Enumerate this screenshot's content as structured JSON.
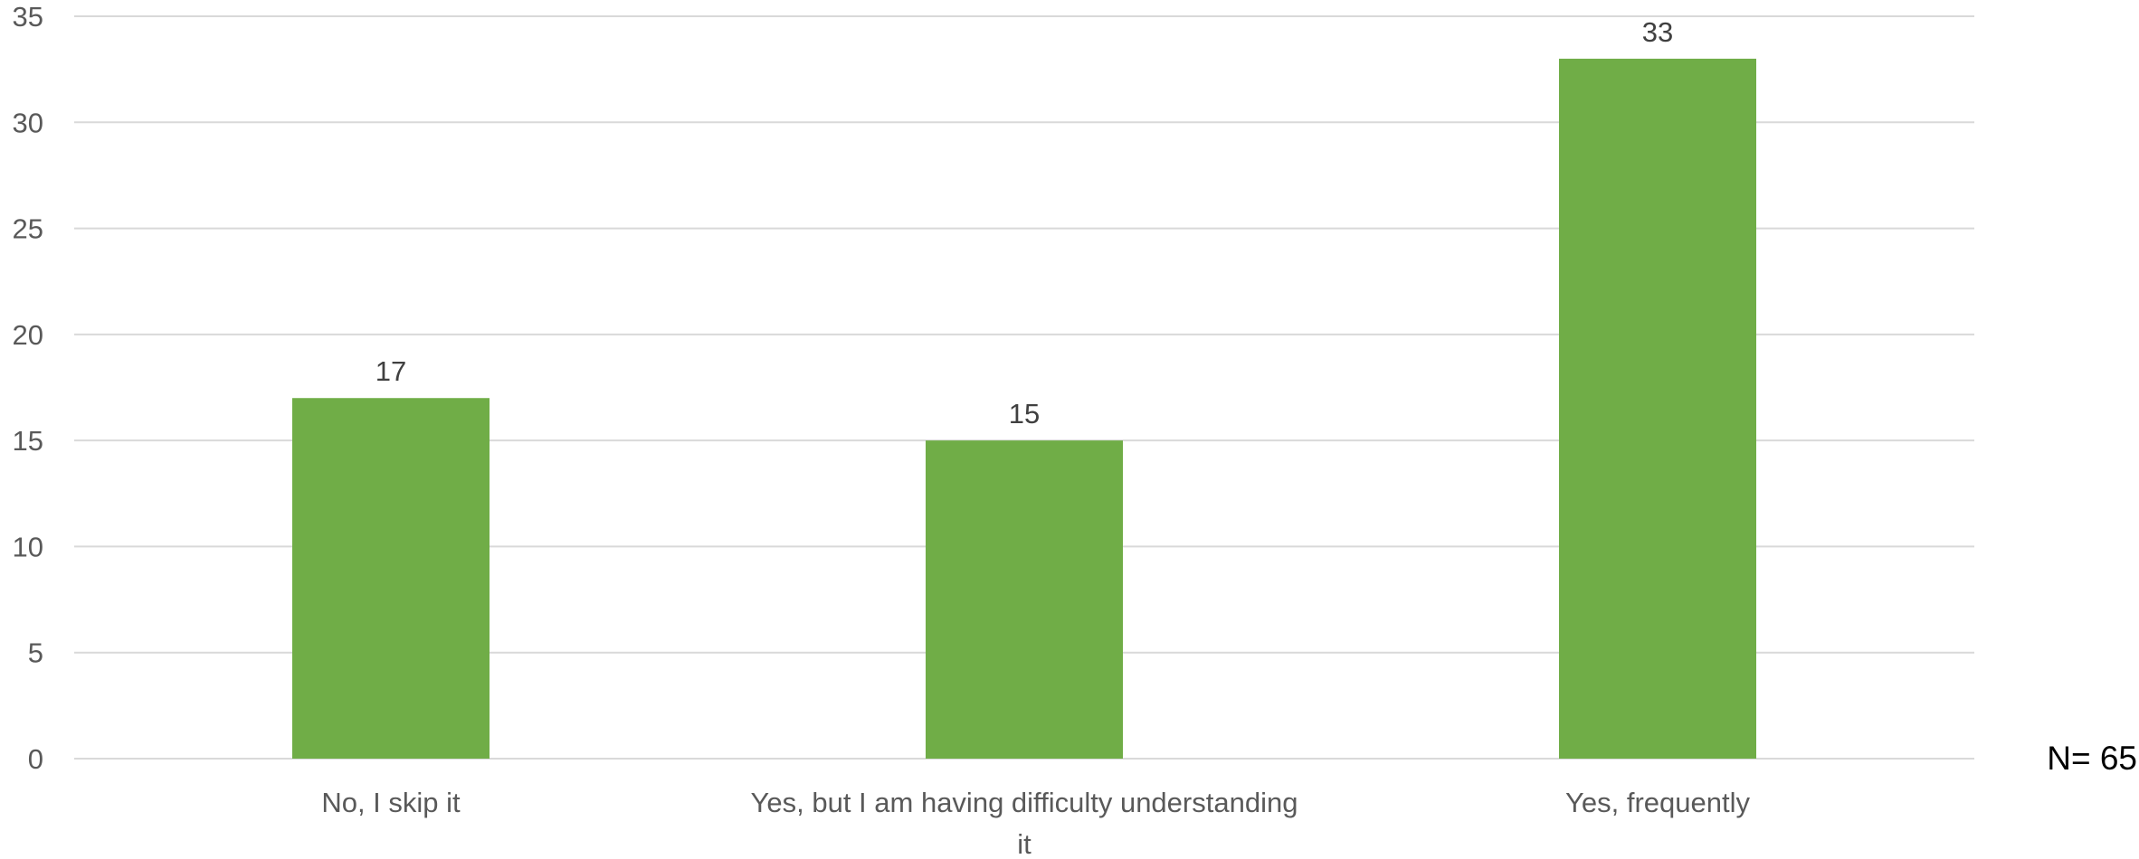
{
  "chart_data": {
    "type": "bar",
    "categories": [
      "No, I skip it",
      "Yes, but I am having difficulty understanding it",
      "Yes, frequently"
    ],
    "category_lines": [
      [
        "No, I skip it"
      ],
      [
        "Yes, but I am having difficulty understanding",
        "it"
      ],
      [
        "Yes, frequently"
      ]
    ],
    "values": [
      17,
      15,
      33
    ],
    "data_labels": [
      "17",
      "15",
      "33"
    ],
    "ylim": [
      0,
      35
    ],
    "yticks": [
      0,
      5,
      10,
      15,
      20,
      25,
      30,
      35
    ],
    "grid": true,
    "legend": "none",
    "bar_color": "#70AD47",
    "grid_color": "#D9D9D9",
    "annotation": "N= 65"
  }
}
